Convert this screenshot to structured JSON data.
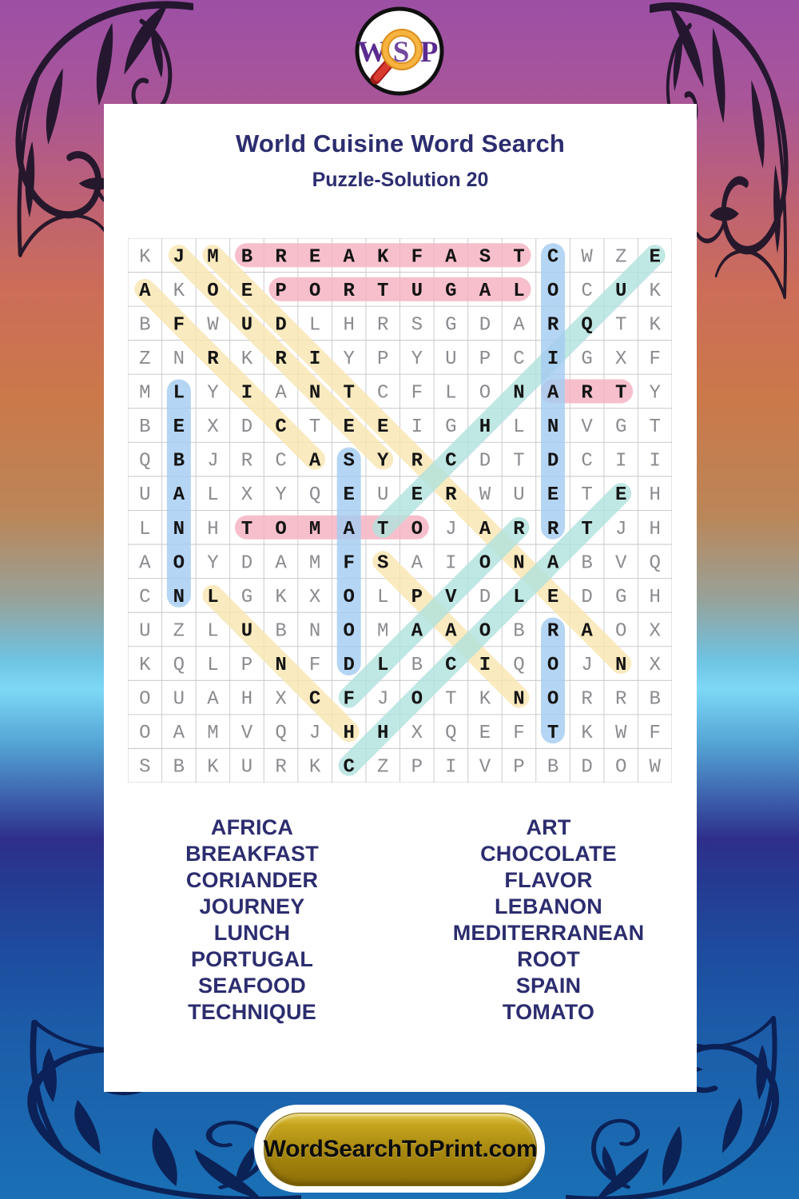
{
  "logo": {
    "letters": "WSP"
  },
  "header": {
    "title": "World Cuisine Word Search",
    "subtitle": "Puzzle-Solution 20"
  },
  "grid": {
    "size": 16,
    "rows": [
      "KJMBREAKFASTCWZE",
      "AKOEPORTUGALOCUK",
      "BFWUDLHRSGDARQTK",
      "ZNRKRIYPYUPCIGXF",
      "MLYIANTCFLONARTY",
      "BEXDCTEEIGHLNVGT",
      "QBJRCASYRCDTDCII",
      "UALXYQEUERWUETEH",
      "LNHTOMATOJARRTJH",
      "AOYDAMFSAIONABVQ",
      "CNLGKXOLPVDLEDGH",
      "UZLUBNOMAAOBRAOX",
      "KQLPNFDLBCIQOJNX",
      "OUAHXCFJOTKNORRB",
      "OAMVQJHHXQEFTKWF",
      "SBKURKCZPIVPBDOW"
    ]
  },
  "solution_words": [
    {
      "word": "BREAKFAST",
      "row": 1,
      "col": 4,
      "dir": "E",
      "color": "pink"
    },
    {
      "word": "PORTUGAL",
      "row": 2,
      "col": 5,
      "dir": "E",
      "color": "pink"
    },
    {
      "word": "ART",
      "row": 5,
      "col": 13,
      "dir": "E",
      "color": "pink"
    },
    {
      "word": "TOMATO",
      "row": 9,
      "col": 4,
      "dir": "E",
      "color": "pink"
    },
    {
      "word": "JOURNEY",
      "row": 1,
      "col": 2,
      "dir": "SE",
      "color": "yellow"
    },
    {
      "word": "AFRICA",
      "row": 2,
      "col": 1,
      "dir": "SE",
      "color": "yellow"
    },
    {
      "word": "MEDITERRANEAN",
      "row": 1,
      "col": 3,
      "dir": "SE",
      "color": "yellow"
    },
    {
      "word": "LUNCH",
      "row": 11,
      "col": 3,
      "dir": "SE",
      "color": "yellow"
    },
    {
      "word": "SPAIN",
      "row": 10,
      "col": 8,
      "dir": "SE",
      "color": "yellow"
    },
    {
      "word": "TECHNIQUE",
      "row": 9,
      "col": 8,
      "dir": "NE",
      "color": "teal"
    },
    {
      "word": "CHOCOLATE",
      "row": 16,
      "col": 7,
      "dir": "NE",
      "color": "teal"
    },
    {
      "word": "FLAVOR",
      "row": 14,
      "col": 7,
      "dir": "NE",
      "color": "teal"
    },
    {
      "word": "CORIANDER",
      "row": 1,
      "col": 13,
      "dir": "S",
      "color": "blue"
    },
    {
      "word": "LEBANON",
      "row": 5,
      "col": 2,
      "dir": "S",
      "color": "blue"
    },
    {
      "word": "SEAFOOD",
      "row": 7,
      "col": 7,
      "dir": "S",
      "color": "blue"
    },
    {
      "word": "ROOT",
      "row": 12,
      "col": 13,
      "dir": "S",
      "color": "blue"
    }
  ],
  "highlight_colors": {
    "pink": "#f6b2c1",
    "yellow": "#f9e6b2",
    "blue": "#a5cdf2",
    "teal": "#b2e2dd"
  },
  "word_list": {
    "left": [
      "AFRICA",
      "BREAKFAST",
      "CORIANDER",
      "JOURNEY",
      "LUNCH",
      "PORTUGAL",
      "SEAFOOD",
      "TECHNIQUE"
    ],
    "right": [
      "ART",
      "CHOCOLATE",
      "FLAVOR",
      "LEBANON",
      "MEDITERRANEAN",
      "ROOT",
      "SPAIN",
      "TOMATO"
    ]
  },
  "footer": {
    "site_label": "WordSearchToPrint.com"
  },
  "colors": {
    "title_navy": "#2c2d6f",
    "grid_letter_gray": "#8b8b90",
    "grid_letter_solved": "#141414",
    "grid_line": "#cccccf",
    "button_gold": "#ab8b10",
    "logo_purple": "#5b2b8f",
    "magnifier_orange": "#f5a623",
    "magnifier_handle_red": "#cc2424"
  }
}
